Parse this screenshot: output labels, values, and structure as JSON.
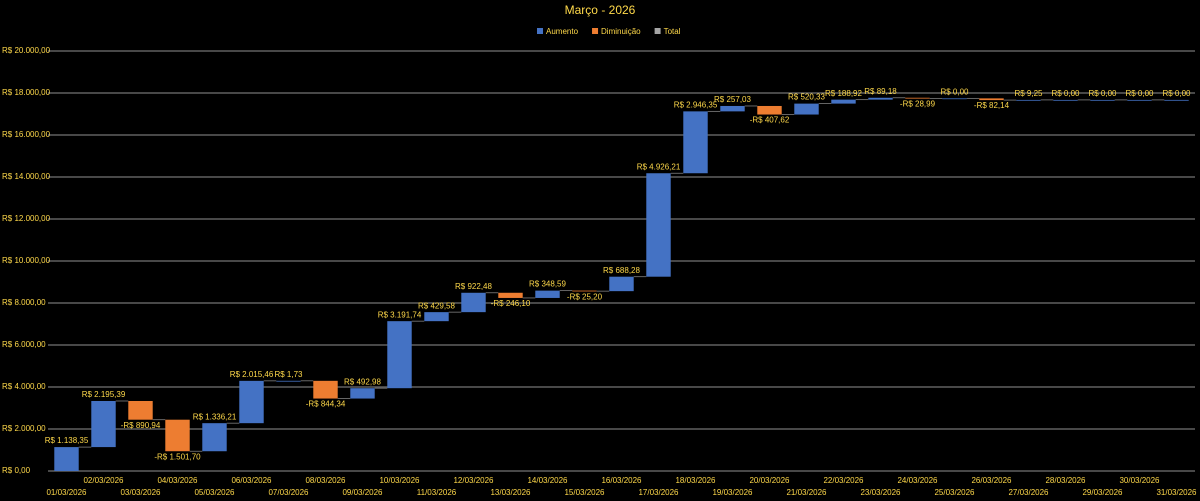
{
  "chart_data": {
    "type": "waterfall",
    "title": "Março - 2026",
    "legend": [
      {
        "name": "Aumento",
        "color": "#4472c4"
      },
      {
        "name": "Diminuição",
        "color": "#ed7d31"
      },
      {
        "name": "Total",
        "color": "#a5a5a5"
      }
    ],
    "categories": [
      "01/03/2026",
      "02/03/2026",
      "03/03/2026",
      "04/03/2026",
      "05/03/2026",
      "06/03/2026",
      "07/03/2026",
      "08/03/2026",
      "09/03/2026",
      "10/03/2026",
      "11/03/2026",
      "12/03/2026",
      "13/03/2026",
      "14/03/2026",
      "15/03/2026",
      "16/03/2026",
      "17/03/2026",
      "18/03/2026",
      "19/03/2026",
      "20/03/2026",
      "21/03/2026",
      "22/03/2026",
      "23/03/2026",
      "24/03/2026",
      "25/03/2026",
      "26/03/2026",
      "27/03/2026",
      "28/03/2026",
      "29/03/2026",
      "30/03/2026",
      "31/03/2026"
    ],
    "values": [
      1138.35,
      2195.39,
      -890.94,
      -1501.7,
      1336.21,
      2015.46,
      1.73,
      -844.34,
      492.98,
      3191.74,
      429.58,
      922.48,
      -246.1,
      348.59,
      -25.2,
      688.28,
      4926.21,
      2946.35,
      257.03,
      -407.62,
      520.33,
      188.92,
      89.18,
      -28.99,
      0.0,
      -82.14,
      9.25,
      0.0,
      0.0,
      0.0,
      0.0
    ],
    "value_labels": [
      "R$ 1.138,35",
      "R$ 2.195,39",
      "-R$ 890,94",
      "-R$ 1.501,70",
      "R$ 1.336,21",
      "R$ 2.015,46",
      "R$ 1,73",
      "-R$ 844,34",
      "R$ 492,98",
      "R$ 3.191,74",
      "R$ 429,58",
      "R$ 922,48",
      "-R$ 246,10",
      "R$ 348,59",
      "-R$ 25,20",
      "R$ 688,28",
      "R$ 4.926,21",
      "R$ 2.946,35",
      "R$ 257,03",
      "-R$ 407,62",
      "R$ 520,33",
      "R$ 188,92",
      "R$ 89,18",
      "-R$ 28,99",
      "R$ 0,00",
      "-R$ 82,14",
      "R$ 9,25",
      "R$ 0,00",
      "R$ 0,00",
      "R$ 0,00",
      "R$ 0,00"
    ],
    "ylim": [
      0,
      20000
    ],
    "yticks": [
      {
        "value": 0,
        "label": "R$ 0,00"
      },
      {
        "value": 2000,
        "label": "R$ 2.000,00"
      },
      {
        "value": 4000,
        "label": "R$ 4.000,00"
      },
      {
        "value": 6000,
        "label": "R$ 6.000,00"
      },
      {
        "value": 8000,
        "label": "R$ 8.000,00"
      },
      {
        "value": 10000,
        "label": "R$ 10.000,00"
      },
      {
        "value": 12000,
        "label": "R$ 12.000,00"
      },
      {
        "value": 14000,
        "label": "R$ 14.000,00"
      },
      {
        "value": 16000,
        "label": "R$ 16.000,00"
      },
      {
        "value": 18000,
        "label": "R$ 18.000,00"
      },
      {
        "value": 20000,
        "label": "R$ 20.000,00"
      }
    ],
    "grid": true
  }
}
